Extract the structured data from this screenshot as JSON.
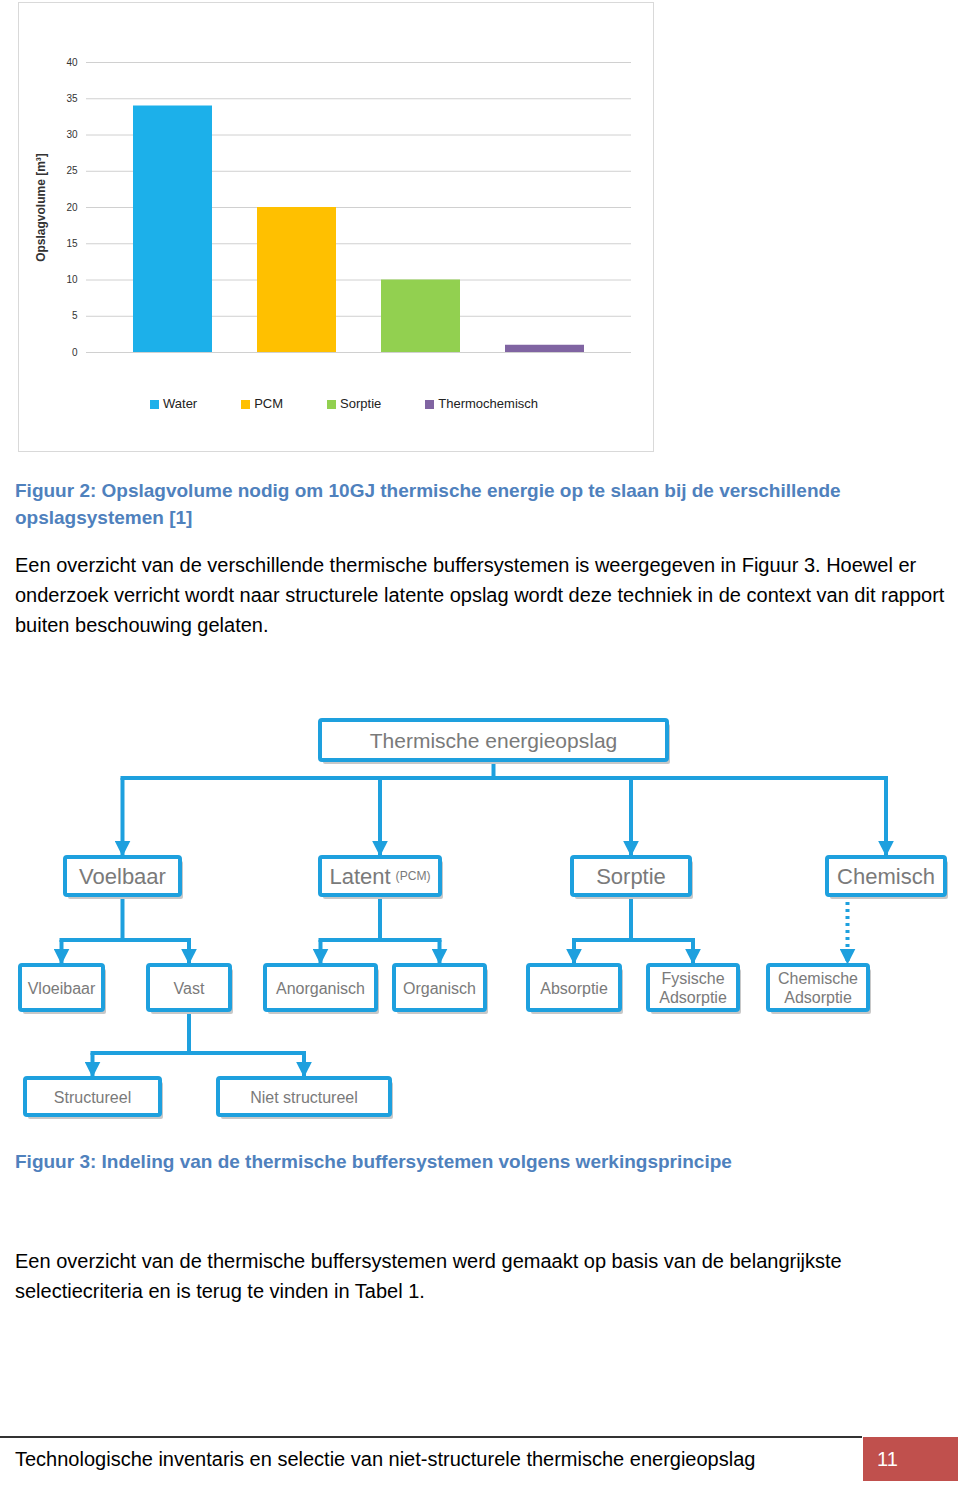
{
  "chart_data": {
    "type": "bar",
    "ylabel": "Opslagvolume [m³]",
    "categories": [
      "Water",
      "PCM",
      "Sorptie",
      "Thermochemisch"
    ],
    "values": [
      34,
      20,
      10,
      1
    ],
    "colors": [
      "#1cb0ea",
      "#ffc000",
      "#92d050",
      "#8064a2"
    ],
    "ylim": [
      0,
      40
    ],
    "yticks": [
      0,
      5,
      10,
      15,
      20,
      25,
      30,
      35,
      40
    ],
    "grid": true,
    "legend": "bottom",
    "tick_labels": "y"
  },
  "document": {
    "figure2_caption": "Figuur 2: Opslagvolume nodig om 10GJ thermische energie op te slaan bij de verschillende opslagsystemen [1]",
    "paragraph1": "Een overzicht van de verschillende thermische buffersystemen is weergegeven in Figuur 3. Hoewel er onderzoek verricht wordt naar structurele latente opslag wordt deze techniek in de context van dit rapport buiten beschouwing gelaten.",
    "diagram": {
      "label": [
        "Thermische energieopslag"
      ],
      "children": [
        {
          "label": [
            "Voelbaar"
          ],
          "children": [
            {
              "label": [
                "Vloeibaar"
              ]
            },
            {
              "label": [
                "Vast"
              ],
              "children": [
                {
                  "label": [
                    "Structureel"
                  ]
                },
                {
                  "label": [
                    "Niet structureel"
                  ]
                }
              ]
            }
          ]
        },
        {
          "label": [
            "Latent"
          ],
          "sublabel": "(PCM)",
          "children": [
            {
              "label": [
                "Anorganisch"
              ]
            },
            {
              "label": [
                "Organisch"
              ]
            }
          ]
        },
        {
          "label": [
            "Sorptie"
          ],
          "children": [
            {
              "label": [
                "Absorptie"
              ]
            },
            {
              "label": [
                "Fysische",
                "Adsorptie"
              ]
            }
          ]
        },
        {
          "label": [
            "Chemisch"
          ],
          "line_style": "dotted",
          "children": [
            {
              "label": [
                "Chemische",
                "Adsorptie"
              ]
            }
          ]
        }
      ]
    },
    "figure3_caption": "Figuur 3: Indeling van de thermische buffersystemen volgens werkingsprincipe",
    "paragraph2": "Een overzicht van de thermische buffersystemen werd gemaakt op basis van de belangrijkste selectiecriteria en is terug te vinden in Tabel 1.",
    "footer": {
      "text": "Technologische inventaris en selectie van niet-structurele thermische energieopslag",
      "page": 11
    }
  }
}
